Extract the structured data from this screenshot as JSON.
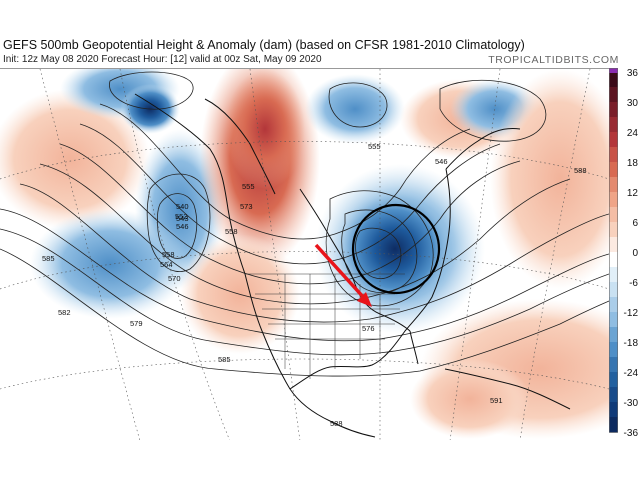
{
  "header": {
    "title": "GEFS 500mb Geopotential Height & Anomaly (dam) (based on CFSR 1981-2010 Climatology)",
    "subtitle": "Init: 12z May 08 2020   Forecast Hour: [12]   valid at 00z Sat, May 09 2020",
    "brand": "TROPICALTIDBITS.COM"
  },
  "colorbar": {
    "ticks": [
      "36",
      "30",
      "24",
      "18",
      "12",
      "6",
      "0",
      "-6",
      "-12",
      "-18",
      "-24",
      "-30",
      "-36"
    ],
    "colors": [
      "#3b0a18",
      "#7a1e2a",
      "#b3363a",
      "#d86a52",
      "#efa487",
      "#f8d1bd",
      "#ffffff",
      "#c9e1f2",
      "#8fbde2",
      "#4f8fc7",
      "#22609f",
      "#103a78",
      "#0a1d4a"
    ]
  },
  "map": {
    "contour_labels": [
      "585",
      "582",
      "579",
      "570",
      "564",
      "558",
      "552",
      "546",
      "540",
      "543",
      "555",
      "573",
      "576",
      "588",
      "591",
      "585",
      "588",
      "558",
      "555",
      "546"
    ],
    "annotations": {
      "arrow": "trough-drop-arrow",
      "circle": "closed-low-circle"
    }
  }
}
